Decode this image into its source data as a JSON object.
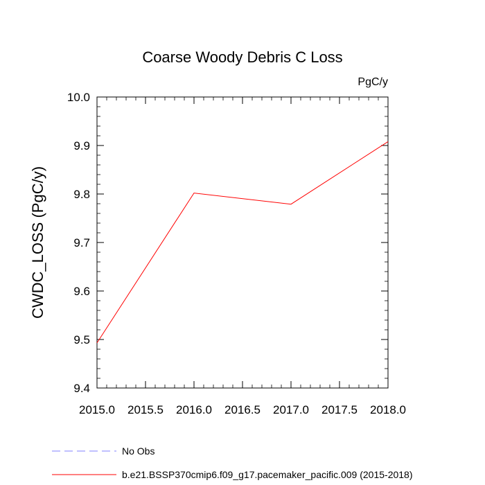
{
  "chart_data": {
    "type": "line",
    "title": "Coarse Woody Debris C Loss",
    "units": "PgC/y",
    "xlabel": "",
    "ylabel": "CWDC_LOSS  (PgC/y)",
    "xlim": [
      2015.0,
      2018.0
    ],
    "ylim": [
      9.4,
      10.0
    ],
    "x_ticks": [
      "2015.0",
      "2015.5",
      "2016.0",
      "2016.5",
      "2017.0",
      "2017.5",
      "2018.0"
    ],
    "y_ticks": [
      "9.4",
      "9.5",
      "9.6",
      "9.7",
      "9.8",
      "9.9",
      "10.0"
    ],
    "grid": false,
    "legend_position": "bottom",
    "series": [
      {
        "name": "b.e21.BSSP370cmip6.f09_g17.pacemaker_pacific.009 (2015-2018)",
        "color": "#ff0000",
        "style": "solid",
        "x": [
          2015.0,
          2016.0,
          2017.0,
          2018.0
        ],
        "y": [
          9.493,
          9.802,
          9.779,
          9.908
        ]
      }
    ],
    "legend": [
      {
        "label": "No Obs",
        "color": "#8080ff",
        "style": "dashed"
      },
      {
        "label": "b.e21.BSSP370cmip6.f09_g17.pacemaker_pacific.009 (2015-2018)",
        "color": "#ff0000",
        "style": "solid"
      }
    ]
  }
}
